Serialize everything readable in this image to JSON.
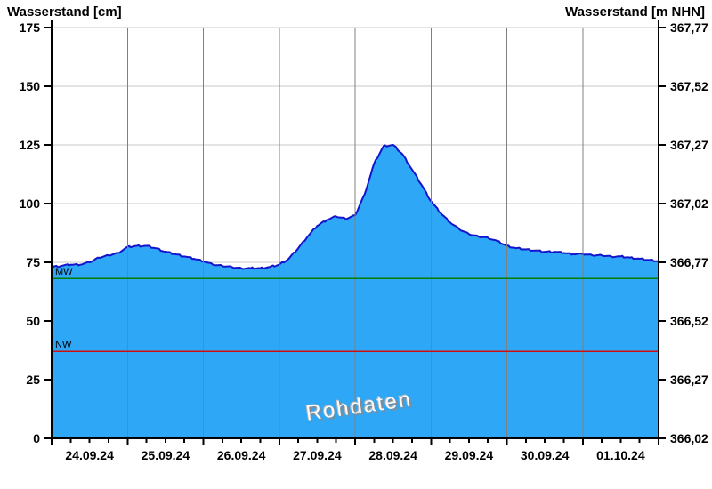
{
  "titles": {
    "left": "Wasserstand [cm]",
    "right": "Wasserstand [m NHN]"
  },
  "watermark": "Rohdaten",
  "chart_data": {
    "type": "area",
    "title": "",
    "xlabel": "",
    "x_tick_labels": [
      "24.09.24",
      "25.09.24",
      "26.09.24",
      "27.09.24",
      "28.09.24",
      "29.09.24",
      "30.09.24",
      "01.10.24"
    ],
    "x_range_days": [
      0,
      8
    ],
    "x_minor_tick_hours": 6,
    "grid": "on",
    "legend_position": "none",
    "y_left": {
      "label": "Wasserstand [cm]",
      "ticks": [
        0,
        25,
        50,
        75,
        100,
        125,
        150,
        175
      ],
      "range": [
        0,
        175
      ],
      "unit": "cm"
    },
    "y_right": {
      "label": "Wasserstand [m NHN]",
      "tick_labels": [
        "366,02",
        "366,27",
        "366,52",
        "366,77",
        "367,02",
        "367,27",
        "367,52",
        "367,77"
      ],
      "range": [
        366.02,
        367.77
      ],
      "unit": "m NHN"
    },
    "reference_lines": [
      {
        "name": "MW",
        "value_cm": 68,
        "color": "#007d00"
      },
      {
        "name": "NW",
        "value_cm": 37,
        "color": "#cc1010"
      }
    ],
    "series": [
      {
        "name": "Wasserstand Rohdaten",
        "unit": "cm",
        "x_unit": "days since 24.09.24 00:00",
        "points_days_cm": [
          [
            0,
            73
          ],
          [
            0.125,
            73.5
          ],
          [
            0.25,
            74
          ],
          [
            0.375,
            74
          ],
          [
            0.5,
            75
          ],
          [
            0.625,
            77
          ],
          [
            0.75,
            78
          ],
          [
            0.875,
            79
          ],
          [
            1,
            81.5
          ],
          [
            1.125,
            82
          ],
          [
            1.25,
            82
          ],
          [
            1.375,
            81
          ],
          [
            1.5,
            79.5
          ],
          [
            1.625,
            78.5
          ],
          [
            1.75,
            77.5
          ],
          [
            1.875,
            76.5
          ],
          [
            2,
            75.5
          ],
          [
            2.125,
            74
          ],
          [
            2.25,
            73.5
          ],
          [
            2.375,
            73
          ],
          [
            2.5,
            72.5
          ],
          [
            2.625,
            72.5
          ],
          [
            2.75,
            72.5
          ],
          [
            2.875,
            73
          ],
          [
            3,
            74
          ],
          [
            3.125,
            76.5
          ],
          [
            3.25,
            81
          ],
          [
            3.375,
            86
          ],
          [
            3.5,
            90.5
          ],
          [
            3.625,
            93
          ],
          [
            3.75,
            94.5
          ],
          [
            3.875,
            93.5
          ],
          [
            4,
            95
          ],
          [
            4.125,
            104
          ],
          [
            4.25,
            117
          ],
          [
            4.375,
            124.5
          ],
          [
            4.5,
            125
          ],
          [
            4.625,
            121
          ],
          [
            4.75,
            114.5
          ],
          [
            4.875,
            108
          ],
          [
            5,
            101
          ],
          [
            5.125,
            96
          ],
          [
            5.25,
            92
          ],
          [
            5.375,
            89
          ],
          [
            5.5,
            87
          ],
          [
            5.625,
            86
          ],
          [
            5.75,
            85.5
          ],
          [
            5.875,
            84
          ],
          [
            6,
            82
          ],
          [
            6.125,
            81
          ],
          [
            6.25,
            80.5
          ],
          [
            6.375,
            80
          ],
          [
            6.5,
            79.5
          ],
          [
            6.625,
            79.5
          ],
          [
            6.75,
            79
          ],
          [
            6.875,
            78.5
          ],
          [
            7,
            78.5
          ],
          [
            7.125,
            78
          ],
          [
            7.25,
            78
          ],
          [
            7.375,
            77.5
          ],
          [
            7.5,
            77.5
          ],
          [
            7.625,
            77
          ],
          [
            7.75,
            76.5
          ],
          [
            7.875,
            76
          ],
          [
            8,
            75.5
          ]
        ]
      }
    ],
    "annotations": [
      "MW",
      "NW",
      "Rohdaten"
    ],
    "colors": {
      "area_fill": "#2ea7f7",
      "area_stroke": "#1414cc",
      "grid_horizontal": "#c9c9c9",
      "grid_vertical": "#808080",
      "axis": "#000000",
      "mw_line": "#007d00",
      "nw_line": "#cc1010"
    }
  }
}
